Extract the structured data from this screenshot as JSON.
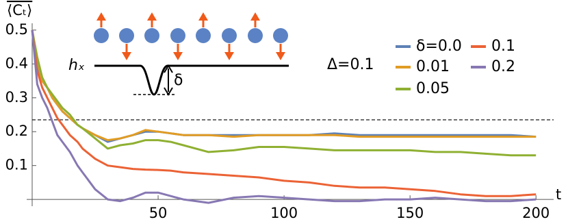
{
  "chart_data": {
    "type": "line",
    "y_label": "⟨Cₜ⟩",
    "x_label": "t",
    "annotation": "Δ=0.1",
    "inset_labels": [
      "hₓ",
      "δ"
    ],
    "reference_line": 0.235,
    "x": [
      0,
      2,
      4,
      6,
      8,
      10,
      12,
      15,
      18,
      20,
      25,
      30,
      35,
      40,
      45,
      50,
      55,
      60,
      70,
      80,
      90,
      100,
      110,
      120,
      130,
      140,
      150,
      160,
      170,
      180,
      190,
      200
    ],
    "series": [
      {
        "name": "δ=0.0",
        "color": "#5e81b5",
        "values": [
          0.5,
          0.4,
          0.35,
          0.33,
          0.3,
          0.28,
          0.26,
          0.24,
          0.22,
          0.21,
          0.19,
          0.17,
          0.18,
          0.19,
          0.2,
          0.2,
          0.195,
          0.19,
          0.19,
          0.19,
          0.19,
          0.19,
          0.19,
          0.195,
          0.19,
          0.19,
          0.19,
          0.19,
          0.19,
          0.19,
          0.19,
          0.185
        ]
      },
      {
        "name": "0.01",
        "color": "#e19c24",
        "values": [
          0.5,
          0.41,
          0.35,
          0.33,
          0.3,
          0.28,
          0.26,
          0.24,
          0.22,
          0.21,
          0.19,
          0.175,
          0.18,
          0.19,
          0.205,
          0.2,
          0.195,
          0.19,
          0.19,
          0.185,
          0.19,
          0.19,
          0.19,
          0.19,
          0.185,
          0.185,
          0.185,
          0.185,
          0.185,
          0.185,
          0.185,
          0.185
        ]
      },
      {
        "name": "0.05",
        "color": "#8fb032",
        "values": [
          0.5,
          0.42,
          0.36,
          0.33,
          0.31,
          0.29,
          0.27,
          0.25,
          0.22,
          0.21,
          0.18,
          0.15,
          0.16,
          0.165,
          0.175,
          0.175,
          0.17,
          0.16,
          0.14,
          0.145,
          0.155,
          0.155,
          0.15,
          0.145,
          0.145,
          0.145,
          0.145,
          0.14,
          0.14,
          0.135,
          0.13,
          0.13
        ]
      },
      {
        "name": "0.1",
        "color": "#eb6235",
        "values": [
          0.5,
          0.38,
          0.33,
          0.3,
          0.27,
          0.24,
          0.22,
          0.19,
          0.17,
          0.15,
          0.12,
          0.1,
          0.095,
          0.09,
          0.088,
          0.087,
          0.085,
          0.08,
          0.075,
          0.07,
          0.065,
          0.055,
          0.05,
          0.04,
          0.035,
          0.035,
          0.03,
          0.025,
          0.015,
          0.01,
          0.01,
          0.015
        ]
      },
      {
        "name": "0.2",
        "color": "#8778b3",
        "values": [
          0.5,
          0.34,
          0.3,
          0.27,
          0.23,
          0.19,
          0.17,
          0.14,
          0.1,
          0.08,
          0.03,
          0.0,
          -0.005,
          0.005,
          0.02,
          0.02,
          0.01,
          0.0,
          -0.01,
          0.005,
          0.01,
          0.005,
          0.0,
          -0.005,
          -0.005,
          0.0,
          0.0,
          0.005,
          0.0,
          -0.005,
          -0.005,
          0.0
        ]
      }
    ],
    "xlim": [
      0,
      207
    ],
    "ylim": [
      -0.02,
      0.52
    ],
    "xticks": [
      50,
      100,
      150,
      200
    ],
    "yticks": [
      0.1,
      0.2,
      0.3,
      0.4,
      0.5
    ]
  }
}
